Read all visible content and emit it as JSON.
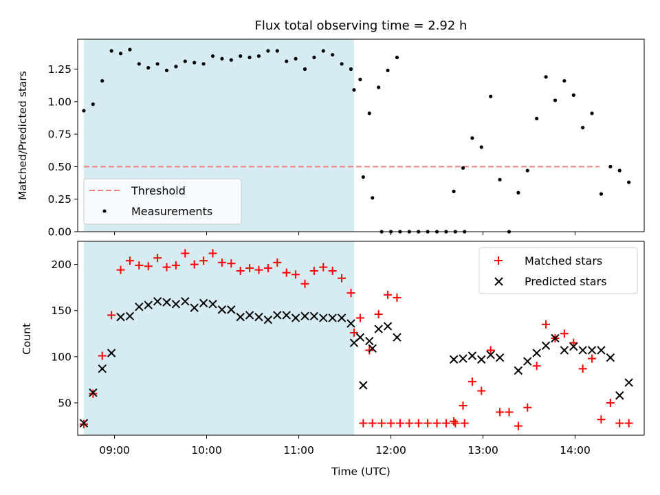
{
  "chart_data": [
    {
      "type": "scatter",
      "title": "Flux total observing time = 2.92 h",
      "xlabel": "",
      "ylabel": "Matched/Predicted stars",
      "xlim": [
        "08:36",
        "14:45"
      ],
      "ylim": [
        0,
        1.48
      ],
      "yticks": [
        "0.00",
        "0.25",
        "0.50",
        "0.75",
        "1.00",
        "1.25"
      ],
      "shaded_interval": [
        "08:40",
        "11:36"
      ],
      "threshold": {
        "name": "Threshold",
        "value": 0.5,
        "x_range": [
          "08:40",
          "14:16"
        ],
        "color": "#f08080"
      },
      "legend_position": "lower-left",
      "series": [
        {
          "name": "Measurements",
          "color": "#000000",
          "marker": "dot",
          "points": [
            [
              "08:40",
              0.93
            ],
            [
              "08:46",
              0.98
            ],
            [
              "08:52",
              1.16
            ],
            [
              "08:58",
              1.39
            ],
            [
              "09:04",
              1.37
            ],
            [
              "09:10",
              1.4
            ],
            [
              "09:16",
              1.29
            ],
            [
              "09:22",
              1.26
            ],
            [
              "09:28",
              1.29
            ],
            [
              "09:34",
              1.24
            ],
            [
              "09:40",
              1.27
            ],
            [
              "09:46",
              1.31
            ],
            [
              "09:52",
              1.3
            ],
            [
              "09:58",
              1.29
            ],
            [
              "10:04",
              1.35
            ],
            [
              "10:10",
              1.33
            ],
            [
              "10:16",
              1.32
            ],
            [
              "10:22",
              1.35
            ],
            [
              "10:28",
              1.34
            ],
            [
              "10:34",
              1.35
            ],
            [
              "10:40",
              1.39
            ],
            [
              "10:46",
              1.39
            ],
            [
              "10:52",
              1.31
            ],
            [
              "10:58",
              1.33
            ],
            [
              "11:04",
              1.25
            ],
            [
              "11:10",
              1.34
            ],
            [
              "11:16",
              1.39
            ],
            [
              "11:22",
              1.36
            ],
            [
              "11:28",
              1.29
            ],
            [
              "11:34",
              1.25
            ],
            [
              "11:40",
              1.17
            ],
            [
              "11:46",
              0.91
            ],
            [
              "11:52",
              1.11
            ],
            [
              "11:58",
              1.24
            ],
            [
              "12:04",
              1.34
            ],
            [
              "11:36",
              1.09
            ],
            [
              "11:42",
              0.42
            ],
            [
              "11:48",
              0.26
            ],
            [
              "11:54",
              0.0
            ],
            [
              "12:00",
              0.0
            ],
            [
              "12:06",
              0.0
            ],
            [
              "12:12",
              0.0
            ],
            [
              "12:18",
              0.0
            ],
            [
              "12:24",
              0.0
            ],
            [
              "12:30",
              0.0
            ],
            [
              "12:36",
              0.0
            ],
            [
              "12:42",
              0.0
            ],
            [
              "12:48",
              0.0
            ],
            [
              "12:41",
              0.31
            ],
            [
              "12:47",
              0.49
            ],
            [
              "12:53",
              0.72
            ],
            [
              "12:59",
              0.65
            ],
            [
              "13:05",
              1.04
            ],
            [
              "13:11",
              0.4
            ],
            [
              "13:17",
              0.0
            ],
            [
              "13:23",
              0.3
            ],
            [
              "13:29",
              0.47
            ],
            [
              "13:35",
              0.87
            ],
            [
              "13:41",
              1.19
            ],
            [
              "13:47",
              1.01
            ],
            [
              "13:53",
              1.16
            ],
            [
              "13:59",
              1.05
            ],
            [
              "14:05",
              0.8
            ],
            [
              "14:11",
              0.91
            ],
            [
              "14:17",
              0.29
            ],
            [
              "14:23",
              0.5
            ],
            [
              "14:29",
              0.47
            ],
            [
              "14:35",
              0.38
            ]
          ]
        }
      ]
    },
    {
      "type": "scatter",
      "title": "",
      "xlabel": "Time (UTC)",
      "ylabel": "Count",
      "xlim": [
        "08:36",
        "14:45"
      ],
      "ylim": [
        15,
        225
      ],
      "yticks": [
        "50",
        "100",
        "150",
        "200"
      ],
      "xticks": [
        "09:00",
        "10:00",
        "11:00",
        "12:00",
        "13:00",
        "14:00"
      ],
      "shaded_interval": [
        "08:40",
        "11:36"
      ],
      "legend_position": "upper-right",
      "series": [
        {
          "name": "Matched stars",
          "color": "#ff0000",
          "marker": "plus",
          "points": [
            [
              "08:40",
              27
            ],
            [
              "08:46",
              60
            ],
            [
              "08:52",
              101
            ],
            [
              "08:58",
              145
            ],
            [
              "09:04",
              194
            ],
            [
              "09:10",
              204
            ],
            [
              "09:16",
              199
            ],
            [
              "09:22",
              198
            ],
            [
              "09:28",
              207
            ],
            [
              "09:34",
              197
            ],
            [
              "09:40",
              199
            ],
            [
              "09:46",
              212
            ],
            [
              "09:52",
              200
            ],
            [
              "09:58",
              204
            ],
            [
              "10:04",
              212
            ],
            [
              "10:10",
              202
            ],
            [
              "10:16",
              201
            ],
            [
              "10:22",
              193
            ],
            [
              "10:28",
              196
            ],
            [
              "10:34",
              194
            ],
            [
              "10:40",
              196
            ],
            [
              "10:46",
              202
            ],
            [
              "10:52",
              191
            ],
            [
              "10:58",
              189
            ],
            [
              "11:04",
              179
            ],
            [
              "11:10",
              193
            ],
            [
              "11:16",
              197
            ],
            [
              "11:22",
              193
            ],
            [
              "11:28",
              185
            ],
            [
              "11:34",
              169
            ],
            [
              "11:40",
              142
            ],
            [
              "11:46",
              107
            ],
            [
              "11:52",
              146
            ],
            [
              "11:58",
              167
            ],
            [
              "12:04",
              164
            ],
            [
              "11:36",
              126
            ],
            [
              "11:42",
              28
            ],
            [
              "11:48",
              28
            ],
            [
              "11:54",
              28
            ],
            [
              "12:00",
              28
            ],
            [
              "12:06",
              28
            ],
            [
              "12:12",
              28
            ],
            [
              "12:18",
              28
            ],
            [
              "12:24",
              28
            ],
            [
              "12:30",
              28
            ],
            [
              "12:36",
              28
            ],
            [
              "12:42",
              28
            ],
            [
              "12:48",
              28
            ],
            [
              "12:41",
              30
            ],
            [
              "12:47",
              47
            ],
            [
              "12:53",
              73
            ],
            [
              "12:59",
              63
            ],
            [
              "13:05",
              107
            ],
            [
              "13:11",
              40
            ],
            [
              "13:17",
              40
            ],
            [
              "13:23",
              25
            ],
            [
              "13:29",
              45
            ],
            [
              "13:35",
              90
            ],
            [
              "13:41",
              135
            ],
            [
              "13:47",
              120
            ],
            [
              "13:53",
              125
            ],
            [
              "13:59",
              115
            ],
            [
              "14:05",
              87
            ],
            [
              "14:11",
              98
            ],
            [
              "14:17",
              32
            ],
            [
              "14:23",
              50
            ],
            [
              "14:29",
              28
            ],
            [
              "14:35",
              28
            ]
          ]
        },
        {
          "name": "Predicted stars",
          "color": "#000000",
          "marker": "x",
          "points": [
            [
              "08:40",
              28
            ],
            [
              "08:46",
              61
            ],
            [
              "08:52",
              87
            ],
            [
              "08:58",
              104
            ],
            [
              "09:04",
              143
            ],
            [
              "09:10",
              144
            ],
            [
              "09:16",
              154
            ],
            [
              "09:22",
              156
            ],
            [
              "09:28",
              160
            ],
            [
              "09:34",
              159
            ],
            [
              "09:40",
              157
            ],
            [
              "09:46",
              160
            ],
            [
              "09:52",
              153
            ],
            [
              "09:58",
              158
            ],
            [
              "10:04",
              157
            ],
            [
              "10:10",
              151
            ],
            [
              "10:16",
              151
            ],
            [
              "10:22",
              143
            ],
            [
              "10:28",
              145
            ],
            [
              "10:34",
              143
            ],
            [
              "10:40",
              140
            ],
            [
              "10:46",
              145
            ],
            [
              "10:52",
              145
            ],
            [
              "10:58",
              142
            ],
            [
              "11:04",
              144
            ],
            [
              "11:10",
              144
            ],
            [
              "11:16",
              142
            ],
            [
              "11:22",
              142
            ],
            [
              "11:28",
              142
            ],
            [
              "11:34",
              136
            ],
            [
              "11:40",
              121
            ],
            [
              "11:46",
              117
            ],
            [
              "11:52",
              130
            ],
            [
              "11:58",
              133
            ],
            [
              "12:04",
              121
            ],
            [
              "11:36",
              115
            ],
            [
              "11:42",
              69
            ],
            [
              "11:48",
              109
            ],
            [
              "12:41",
              97
            ],
            [
              "12:47",
              98
            ],
            [
              "12:53",
              101
            ],
            [
              "12:59",
              97
            ],
            [
              "13:05",
              102
            ],
            [
              "13:11",
              99
            ],
            [
              "13:23",
              85
            ],
            [
              "13:29",
              95
            ],
            [
              "13:35",
              104
            ],
            [
              "13:41",
              112
            ],
            [
              "13:47",
              120
            ],
            [
              "13:53",
              107
            ],
            [
              "13:59",
              111
            ],
            [
              "14:05",
              107
            ],
            [
              "14:11",
              107
            ],
            [
              "14:17",
              107
            ],
            [
              "14:23",
              99
            ],
            [
              "14:29",
              58
            ],
            [
              "14:35",
              72
            ]
          ]
        }
      ]
    }
  ]
}
